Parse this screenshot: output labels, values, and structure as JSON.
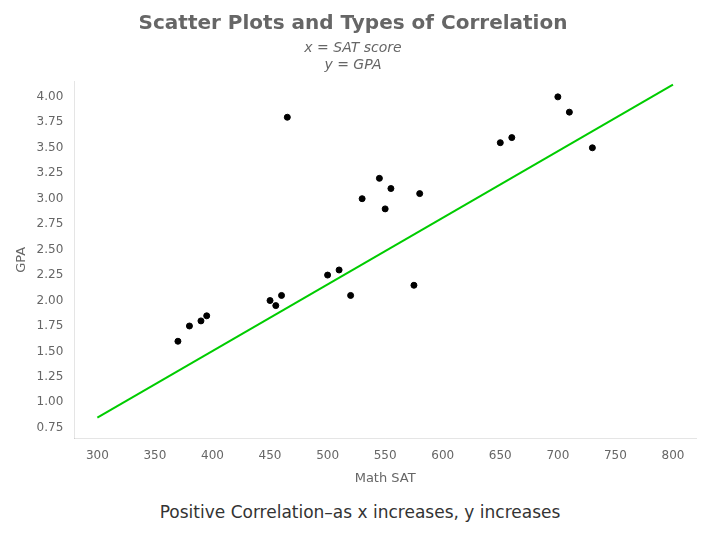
{
  "chart_data": {
    "type": "scatter",
    "title": "Scatter Plots and Types of Correlation",
    "subtitle": [
      "x = SAT score",
      "y = GPA"
    ],
    "xlabel": "Math SAT",
    "ylabel": "GPA",
    "footer": "Positive Correlation–as x increases, y increases",
    "series": [
      {
        "type": "scatter",
        "color": "#000000",
        "x": [
          370,
          380,
          390,
          395,
          450,
          455,
          460,
          465,
          500,
          510,
          520,
          530,
          545,
          550,
          555,
          575,
          580,
          650,
          660,
          700,
          710,
          730
        ],
        "values": [
          1.6,
          1.75,
          1.8,
          1.85,
          2.0,
          1.95,
          2.05,
          3.8,
          2.25,
          2.3,
          2.05,
          3.0,
          3.2,
          2.9,
          3.1,
          2.15,
          3.05,
          3.55,
          3.6,
          4.0,
          3.85,
          3.5
        ]
      },
      {
        "type": "line",
        "color": "#00cc00",
        "x": [
          300,
          800
        ],
        "values": [
          0.85,
          4.12
        ]
      }
    ],
    "xlim": [
      280,
      820
    ],
    "xticks": [
      300,
      350,
      400,
      450,
      500,
      550,
      600,
      650,
      700,
      750,
      800
    ],
    "ylim": [
      0.65,
      4.15
    ],
    "yticks": [
      {
        "value": 0.75,
        "label": "0.75"
      },
      {
        "value": 1.0,
        "label": "1.00"
      },
      {
        "value": 1.25,
        "label": "1.25"
      },
      {
        "value": 1.5,
        "label": "1.50"
      },
      {
        "value": 1.75,
        "label": "1.75"
      },
      {
        "value": 2.0,
        "label": "2.00"
      },
      {
        "value": 2.25,
        "label": "2.25"
      },
      {
        "value": 2.5,
        "label": "2.50"
      },
      {
        "value": 2.75,
        "label": "2.75"
      },
      {
        "value": 3.0,
        "label": "3.00"
      },
      {
        "value": 3.25,
        "label": "3.25"
      },
      {
        "value": 3.5,
        "label": "3.50"
      },
      {
        "value": 3.75,
        "label": "3.75"
      },
      {
        "value": 4.0,
        "label": "4.00"
      }
    ],
    "grid": false
  }
}
